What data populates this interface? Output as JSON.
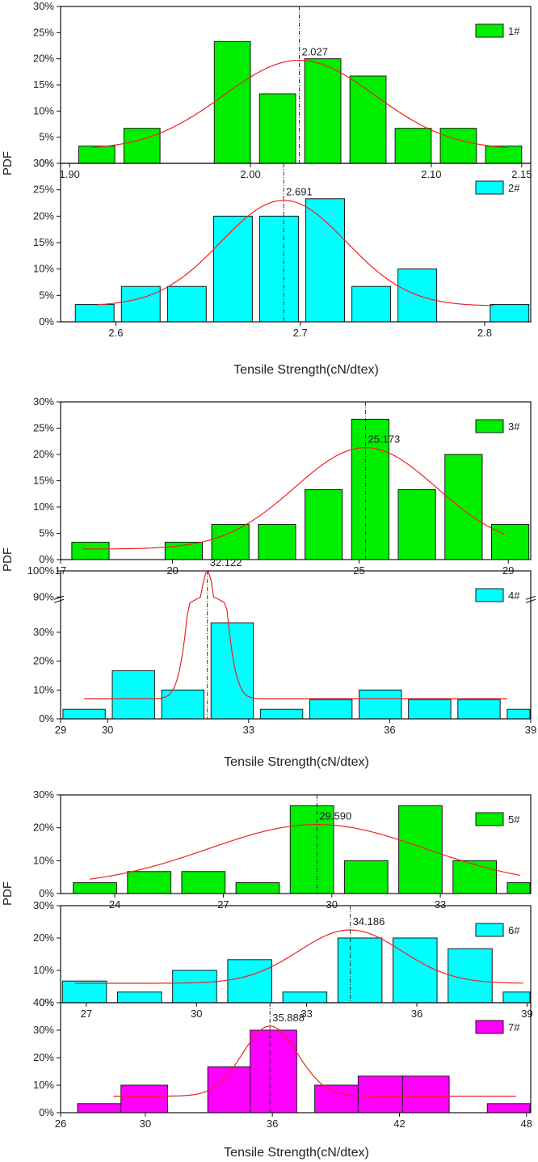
{
  "chart_data": [
    {
      "type": "bar",
      "id": "1",
      "legend": "1#",
      "color": "#00ee00",
      "ylabel": "PDF",
      "xlim": [
        1.895,
        2.155
      ],
      "ylim": [
        0,
        30
      ],
      "xticks": [
        1.9,
        2.0,
        2.1,
        2.15
      ],
      "xtick_labels": [
        "1.90",
        "2.00",
        "2.10",
        "2.15"
      ],
      "yticks": [
        0,
        5,
        10,
        15,
        20,
        25,
        30
      ],
      "ytick_labels": [
        "0%",
        "5%",
        "10%",
        "15%",
        "20%",
        "25%",
        "30%"
      ],
      "bins": [
        [
          1.905,
          1.925,
          3.3
        ],
        [
          1.93,
          1.95,
          6.7
        ],
        [
          1.98,
          2.0,
          23.3
        ],
        [
          2.005,
          2.025,
          13.3
        ],
        [
          2.03,
          2.05,
          20.0
        ],
        [
          2.055,
          2.075,
          16.7
        ],
        [
          2.08,
          2.1,
          6.7
        ],
        [
          2.105,
          2.125,
          6.7
        ],
        [
          2.13,
          2.15,
          3.3
        ]
      ],
      "mean": 2.027,
      "mean_label": "2.027",
      "fit": {
        "mu": 2.027,
        "sigma": 0.042,
        "peak": 19.7,
        "base": 2.6,
        "range": [
          1.912,
          2.142
        ]
      }
    },
    {
      "type": "bar",
      "id": "2",
      "legend": "2#",
      "color": "#00ffff",
      "xlim": [
        2.57,
        2.825
      ],
      "ylim": [
        0,
        30
      ],
      "xticks": [
        2.6,
        2.7,
        2.8
      ],
      "xtick_labels": [
        "2.6",
        "2.7",
        "2.8"
      ],
      "yticks": [
        0,
        5,
        10,
        15,
        20,
        25,
        30
      ],
      "ytick_labels": [
        "0%",
        "5%",
        "10%",
        "15%",
        "20%",
        "25%",
        "30%"
      ],
      "bins": [
        [
          2.578,
          2.599,
          3.3
        ],
        [
          2.603,
          2.624,
          6.7
        ],
        [
          2.628,
          2.649,
          6.7
        ],
        [
          2.653,
          2.674,
          20.0
        ],
        [
          2.678,
          2.699,
          20.0
        ],
        [
          2.703,
          2.724,
          23.3
        ],
        [
          2.728,
          2.749,
          6.7
        ],
        [
          2.753,
          2.774,
          10.0
        ],
        [
          2.803,
          2.824,
          3.3
        ]
      ],
      "mean": 2.691,
      "mean_label": "2.691",
      "fit": {
        "mu": 2.691,
        "sigma": 0.034,
        "peak": 23.0,
        "base": 3.0,
        "range": [
          2.59,
          2.805
        ]
      }
    },
    {
      "type": "bar",
      "id": "3",
      "legend": "3#",
      "color": "#00ee00",
      "ylabel": "PDF",
      "xlim": [
        17,
        29.6
      ],
      "ylim": [
        0,
        30
      ],
      "xticks": [
        17,
        20,
        25,
        29
      ],
      "xtick_labels": [
        "17",
        "20",
        "25",
        "29"
      ],
      "yticks": [
        0,
        5,
        10,
        15,
        20,
        25,
        30
      ],
      "ytick_labels": [
        "0%",
        "5%",
        "10%",
        "15%",
        "20%",
        "25%",
        "30%"
      ],
      "bins": [
        [
          17.3,
          18.3,
          3.3
        ],
        [
          19.8,
          20.8,
          3.3
        ],
        [
          21.05,
          22.05,
          6.7
        ],
        [
          22.3,
          23.3,
          6.7
        ],
        [
          23.55,
          24.55,
          13.3
        ],
        [
          24.8,
          25.8,
          26.7
        ],
        [
          26.05,
          27.05,
          13.3
        ],
        [
          27.3,
          28.3,
          20.0
        ],
        [
          28.55,
          29.55,
          6.7
        ]
      ],
      "mean": 25.173,
      "mean_label": "25.173",
      "fit": {
        "mu": 25.173,
        "sigma": 1.9,
        "peak": 21.3,
        "base": 2.0,
        "range": [
          17.6,
          28.9
        ]
      }
    },
    {
      "type": "bar",
      "id": "4",
      "legend": "4#",
      "color": "#00ffff",
      "xlim": [
        29,
        39
      ],
      "ylim": [
        0,
        100
      ],
      "axis_break": [
        40,
        90
      ],
      "xticks": [
        29,
        30,
        33,
        36,
        39
      ],
      "xtick_labels": [
        "29",
        "30",
        "33",
        "36",
        "39"
      ],
      "yticks": [
        0,
        10,
        20,
        30,
        90,
        100
      ],
      "ytick_labels": [
        "0%",
        "10%",
        "20%",
        "30%",
        "90%",
        "100%"
      ],
      "bins": [
        [
          29.05,
          29.95,
          3.3
        ],
        [
          30.1,
          31.0,
          16.7
        ],
        [
          31.15,
          32.05,
          10.0
        ],
        [
          32.2,
          33.1,
          33.3
        ],
        [
          33.25,
          34.15,
          3.3
        ],
        [
          34.3,
          35.2,
          6.7
        ],
        [
          35.35,
          36.25,
          10.0
        ],
        [
          36.4,
          37.3,
          6.7
        ],
        [
          37.45,
          38.35,
          6.7
        ],
        [
          38.5,
          39.4,
          3.3
        ]
      ],
      "mean": 32.122,
      "mean_label": "32.122",
      "fit": {
        "mu": 32.122,
        "sigma": 0.28,
        "peak": 100,
        "base": 7.0,
        "range": [
          29.5,
          38.5
        ]
      }
    },
    {
      "type": "bar",
      "id": "5",
      "legend": "5#",
      "color": "#00ee00",
      "ylabel": "PDF",
      "xlim": [
        22.5,
        35.5
      ],
      "ylim": [
        0,
        30
      ],
      "xticks": [
        24,
        27,
        30,
        33
      ],
      "xtick_labels": [
        "24",
        "27",
        "30",
        "33"
      ],
      "yticks": [
        0,
        10,
        20,
        30
      ],
      "ytick_labels": [
        "0%",
        "10%",
        "20%",
        "30%"
      ],
      "bins": [
        [
          22.85,
          24.05,
          3.3
        ],
        [
          24.35,
          25.55,
          6.7
        ],
        [
          25.85,
          27.05,
          6.7
        ],
        [
          27.35,
          28.55,
          3.3
        ],
        [
          28.85,
          30.05,
          26.7
        ],
        [
          30.35,
          31.55,
          10.0
        ],
        [
          31.85,
          33.05,
          26.7
        ],
        [
          33.35,
          34.55,
          10.0
        ],
        [
          34.85,
          36.05,
          3.3
        ],
        [
          36.35,
          37.55,
          3.3
        ]
      ],
      "mean": 29.59,
      "mean_label": "29.590",
      "fit": {
        "mu": 29.59,
        "sigma": 3.0,
        "peak": 21.0,
        "base": 2.3,
        "range": [
          23.3,
          35.2
        ]
      }
    },
    {
      "type": "bar",
      "id": "6",
      "legend": "6#",
      "color": "#00ffff",
      "xlim": [
        26.3,
        39.1
      ],
      "ylim": [
        0,
        30
      ],
      "xticks": [
        27,
        30,
        33,
        36,
        39
      ],
      "xtick_labels": [
        "27",
        "30",
        "33",
        "36",
        "39"
      ],
      "yticks": [
        0,
        10,
        20,
        30
      ],
      "ytick_labels": [
        "0%",
        "10%",
        "20%",
        "30%"
      ],
      "bins": [
        [
          26.35,
          27.55,
          6.7
        ],
        [
          27.85,
          29.05,
          3.3
        ],
        [
          29.35,
          30.55,
          10.0
        ],
        [
          30.85,
          32.05,
          13.3
        ],
        [
          32.35,
          33.55,
          3.3
        ],
        [
          33.85,
          35.05,
          20.0
        ],
        [
          35.35,
          36.55,
          20.0
        ],
        [
          36.85,
          38.05,
          16.7
        ],
        [
          38.35,
          39.55,
          3.3
        ],
        [
          39.85,
          41.05,
          3.3
        ]
      ],
      "mean": 34.186,
      "mean_label": "34.186",
      "fit": {
        "mu": 34.186,
        "sigma": 1.4,
        "peak": 22.5,
        "base": 6.0,
        "range": [
          26.7,
          38.9
        ]
      }
    },
    {
      "type": "bar",
      "id": "7",
      "legend": "7#",
      "color": "#ff00ff",
      "xlim": [
        26,
        48.2
      ],
      "ylim": [
        0,
        40
      ],
      "xticks": [
        26,
        30,
        36,
        42,
        48
      ],
      "xtick_labels": [
        "26",
        "30",
        "36",
        "42",
        "48"
      ],
      "yticks": [
        0,
        10,
        20,
        30,
        40
      ],
      "ytick_labels": [
        "0%",
        "10%",
        "20%",
        "30%",
        "40%"
      ],
      "bins": [
        [
          26.8,
          29.0,
          3.3
        ],
        [
          28.85,
          31.05,
          10.0
        ],
        [
          32.95,
          35.15,
          16.7
        ],
        [
          34.95,
          37.15,
          30.0
        ],
        [
          38.0,
          40.2,
          10.0
        ],
        [
          40.05,
          42.25,
          13.3
        ],
        [
          42.15,
          44.35,
          13.3
        ],
        [
          46.15,
          48.35,
          3.3
        ]
      ],
      "mean": 35.888,
      "mean_label": "35.888",
      "fit": {
        "mu": 35.888,
        "sigma": 1.3,
        "peak": 31.5,
        "base": 6.0,
        "range": [
          28.5,
          47.5
        ]
      }
    }
  ],
  "labels": {
    "xlabel": "Tensile Strength(cN/dtex)",
    "ylabel": "PDF"
  }
}
